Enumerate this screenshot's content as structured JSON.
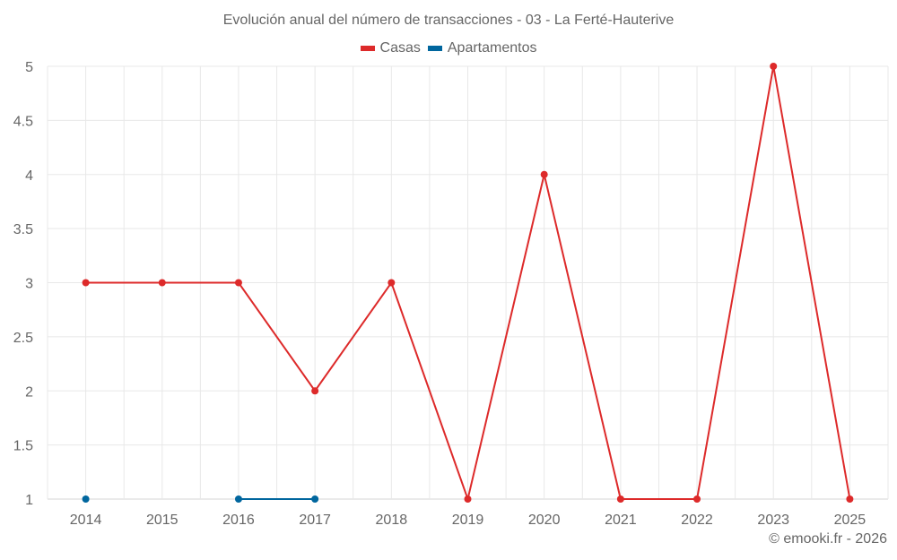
{
  "header": {
    "title": "Evolución anual del número de transacciones - 03 - La Ferté-Hauterive"
  },
  "legend": {
    "items": [
      {
        "label": "Casas",
        "color": "#dd2a2a"
      },
      {
        "label": "Apartamentos",
        "color": "#00669e"
      }
    ]
  },
  "footer": {
    "credit": "© emooki.fr - 2026"
  },
  "colors": {
    "grid": "#e8e8e8",
    "axis_text": "#666666",
    "casas": "#dd2a2a",
    "apartamentos": "#00669e"
  },
  "chart_data": {
    "type": "line",
    "title": "Evolución anual del número de transacciones - 03 - La Ferté-Hauterive",
    "xlabel": "",
    "ylabel": "",
    "categories": [
      "2014",
      "2015",
      "2016",
      "2017",
      "2018",
      "2019",
      "2020",
      "2021",
      "2022",
      "2023",
      "2025"
    ],
    "series": [
      {
        "name": "Casas",
        "color": "#dd2a2a",
        "values": [
          3,
          3,
          3,
          2,
          3,
          1,
          4,
          1,
          1,
          5,
          1
        ]
      },
      {
        "name": "Apartamentos",
        "color": "#00669e",
        "values": [
          1,
          null,
          1,
          1,
          null,
          null,
          null,
          null,
          null,
          null,
          null
        ]
      }
    ],
    "ylim": [
      1,
      5
    ],
    "yticks": [
      "1",
      "1.5",
      "2",
      "2.5",
      "3",
      "3.5",
      "4",
      "4.5",
      "5"
    ],
    "grid": true,
    "legend_position": "top-center"
  }
}
